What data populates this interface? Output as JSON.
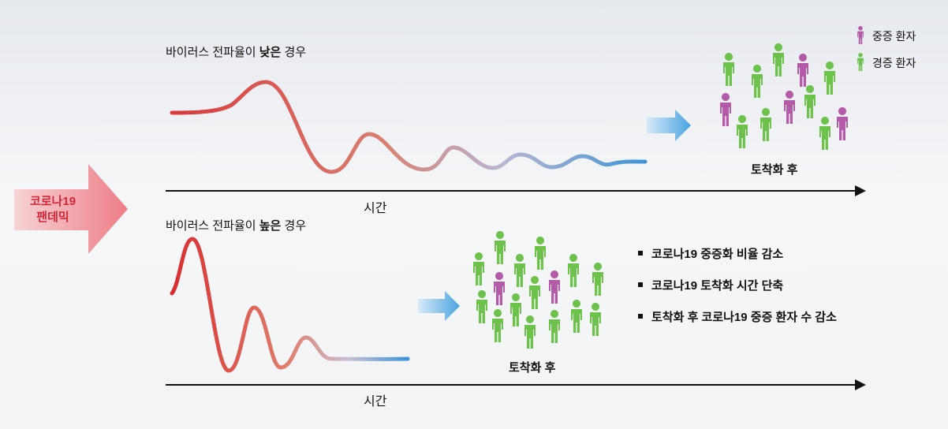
{
  "pandemic": {
    "lines": [
      "코로나19",
      "팬데믹"
    ]
  },
  "low": {
    "label": {
      "before": "바이러스 전파율이 ",
      "emphasis": "낮은",
      "after": " 경우"
    },
    "axis_label": "시간",
    "result": "토착화 후"
  },
  "high": {
    "label": {
      "before": "바이러스 전파율이 ",
      "emphasis": "높은",
      "after": " 경우"
    },
    "axis_label": "시간",
    "result": "토착화 후"
  },
  "legend": [
    "중증 환자",
    "경증 환자"
  ],
  "outcomes": [
    "코로나19 중증화 비율 감소",
    "코로나19 토착화 시간 단축",
    "토착화 후 코로나19 중증 환자 수 감소"
  ]
}
